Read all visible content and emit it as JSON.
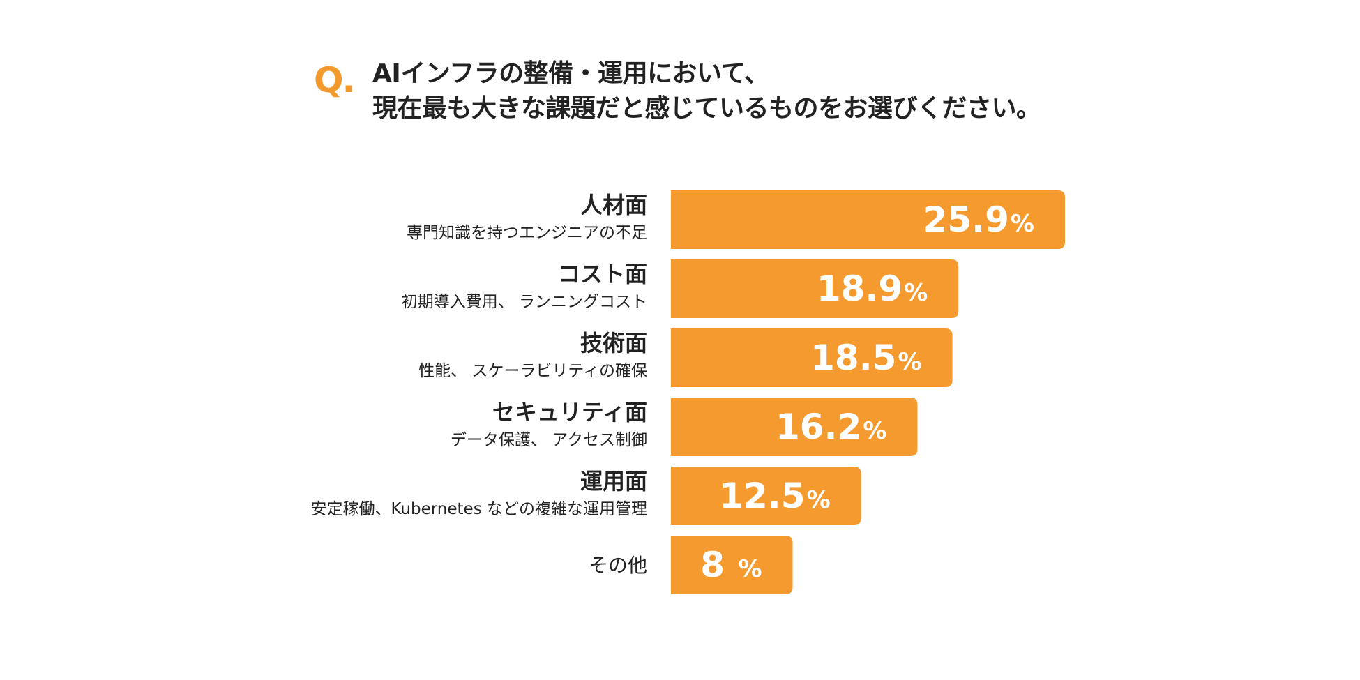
{
  "question": {
    "mark": "Q.",
    "line1": "AIインフラの整備・運用において、",
    "line2": "現在最も大きな課題だと感じているものをお選びください。"
  },
  "colors": {
    "accent": "#f39a2e",
    "bar": "#f59a2f",
    "bar_text": "#ffffff",
    "text": "#222222"
  },
  "chart_data": {
    "type": "bar",
    "orientation": "horizontal",
    "title": "AIインフラの整備・運用において、現在最も大きな課題だと感じているものをお選びください。",
    "unit": "%",
    "xlim": [
      0,
      25.9
    ],
    "categories": [
      {
        "title": "人材面",
        "subtitle": "専門知識を持つエンジニアの不足",
        "value": 25.9,
        "label": "25.9",
        "unit": "%"
      },
      {
        "title": "コスト面",
        "subtitle": "初期導入費用、 ランニングコスト",
        "value": 18.9,
        "label": "18.9",
        "unit": "%"
      },
      {
        "title": "技術面",
        "subtitle": "性能、 スケーラビリティの確保",
        "value": 18.5,
        "label": "18.5",
        "unit": "%"
      },
      {
        "title": "セキュリティ面",
        "subtitle": "データ保護、 アクセス制御",
        "value": 16.2,
        "label": "16.2",
        "unit": "%"
      },
      {
        "title": "運用面",
        "subtitle": "安定稼働、Kubernetes などの複雑な運用管理",
        "value": 12.5,
        "label": "12.5",
        "unit": "%"
      },
      {
        "title": "その他",
        "subtitle": "",
        "value": 8,
        "label": "8 ",
        "unit": "%"
      }
    ]
  }
}
